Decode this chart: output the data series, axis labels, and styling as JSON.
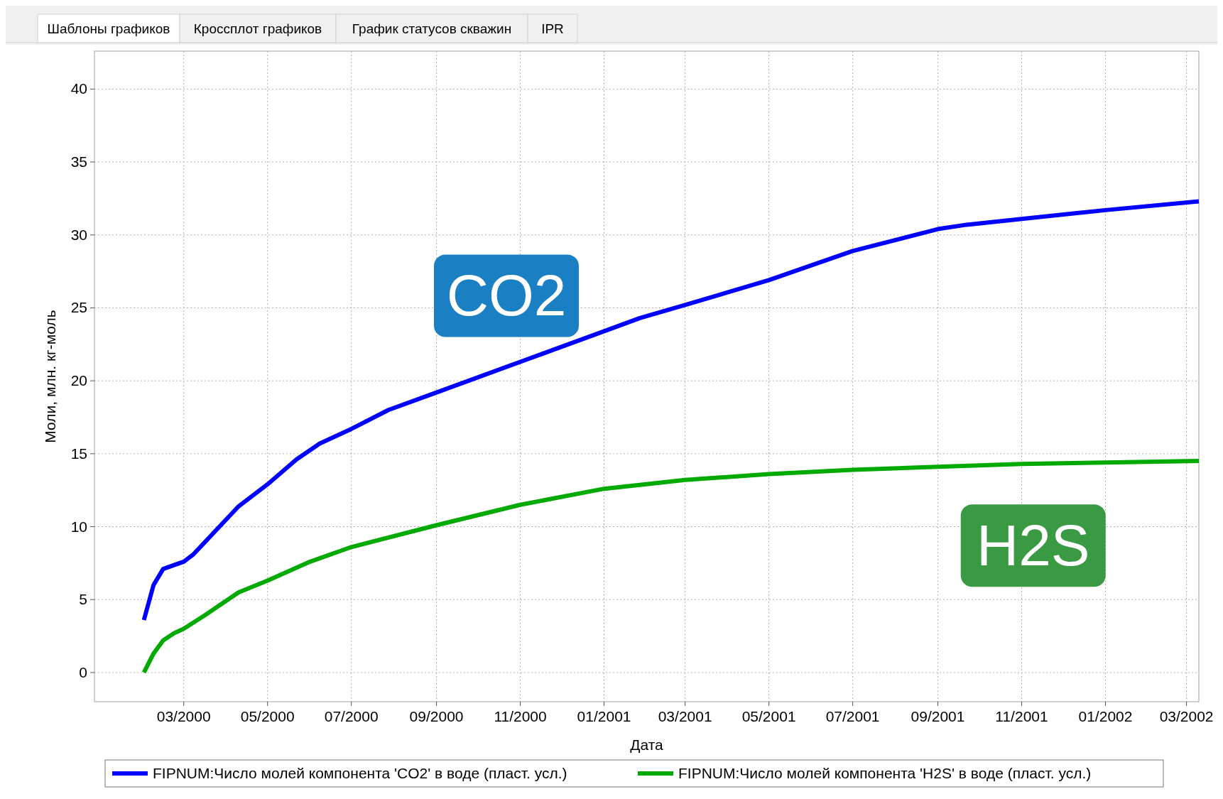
{
  "chart_data": {
    "type": "line",
    "xlabel": "Дата",
    "ylabel": "Моли, млн. кг-моль",
    "annotations": [
      "Шаблоны графиков",
      "Кроссплот графиков",
      "График статусов скважин",
      "IPR",
      "CO2",
      "H2S"
    ],
    "xlim": [
      "1999-12-27",
      "2002-03-10"
    ],
    "xticks": [
      {
        "value": "2000-03-01",
        "label": "03/2000"
      },
      {
        "value": "2000-05-01",
        "label": "05/2000"
      },
      {
        "value": "2000-07-01",
        "label": "07/2000"
      },
      {
        "value": "2000-09-01",
        "label": "09/2000"
      },
      {
        "value": "2000-11-01",
        "label": "11/2000"
      },
      {
        "value": "2001-01-01",
        "label": "01/2001"
      },
      {
        "value": "2001-03-01",
        "label": "03/2001"
      },
      {
        "value": "2001-05-01",
        "label": "05/2001"
      },
      {
        "value": "2001-07-01",
        "label": "07/2001"
      },
      {
        "value": "2001-09-01",
        "label": "09/2001"
      },
      {
        "value": "2001-11-01",
        "label": "11/2001"
      },
      {
        "value": "2002-01-01",
        "label": "01/2002"
      },
      {
        "value": "2002-03-01",
        "label": "03/2002"
      }
    ],
    "ylim": [
      -2,
      42.6
    ],
    "yticks": [
      0,
      5,
      10,
      15,
      20,
      25,
      30,
      35,
      40
    ],
    "grid": true,
    "legend": "bottom",
    "line_style": "solid",
    "marker": "none",
    "series": [
      {
        "name": "FIPNUM:Число молей компонента 'CO2' в воде (пласт. усл.)",
        "color": "#0000ff",
        "x": [
          "2000-02-01",
          "2000-02-08",
          "2000-02-15",
          "2000-03-01",
          "2000-03-08",
          "2000-03-22",
          "2000-04-10",
          "2000-05-01",
          "2000-05-22",
          "2000-06-08",
          "2000-07-01",
          "2000-07-28",
          "2000-09-01",
          "2000-11-01",
          "2001-01-01",
          "2001-01-27",
          "2001-03-01",
          "2001-05-01",
          "2001-07-01",
          "2001-09-01",
          "2001-09-22",
          "2001-11-01",
          "2002-01-01",
          "2002-03-10"
        ],
        "values": [
          3.6,
          6.0,
          7.1,
          7.6,
          8.1,
          9.5,
          11.4,
          12.9,
          14.6,
          15.7,
          16.7,
          18.0,
          19.2,
          21.3,
          23.4,
          24.3,
          25.2,
          26.9,
          28.9,
          30.4,
          30.7,
          31.1,
          31.7,
          32.3
        ]
      },
      {
        "name": "FIPNUM:Число молей компонента 'H2S' в воде (пласт. усл.)",
        "color": "#00aa00",
        "x": [
          "2000-02-01",
          "2000-02-08",
          "2000-02-15",
          "2000-02-23",
          "2000-03-01",
          "2000-03-16",
          "2000-04-10",
          "2000-05-01",
          "2000-06-01",
          "2000-07-01",
          "2000-09-01",
          "2000-11-01",
          "2001-01-01",
          "2001-03-01",
          "2001-05-01",
          "2001-07-01",
          "2001-09-01",
          "2001-11-01",
          "2002-01-01",
          "2002-03-10"
        ],
        "values": [
          0,
          1.3,
          2.2,
          2.7,
          3.0,
          3.9,
          5.5,
          6.3,
          7.6,
          8.6,
          10.1,
          11.5,
          12.6,
          13.2,
          13.6,
          13.9,
          14.1,
          14.3,
          14.4,
          14.5
        ]
      }
    ]
  }
}
